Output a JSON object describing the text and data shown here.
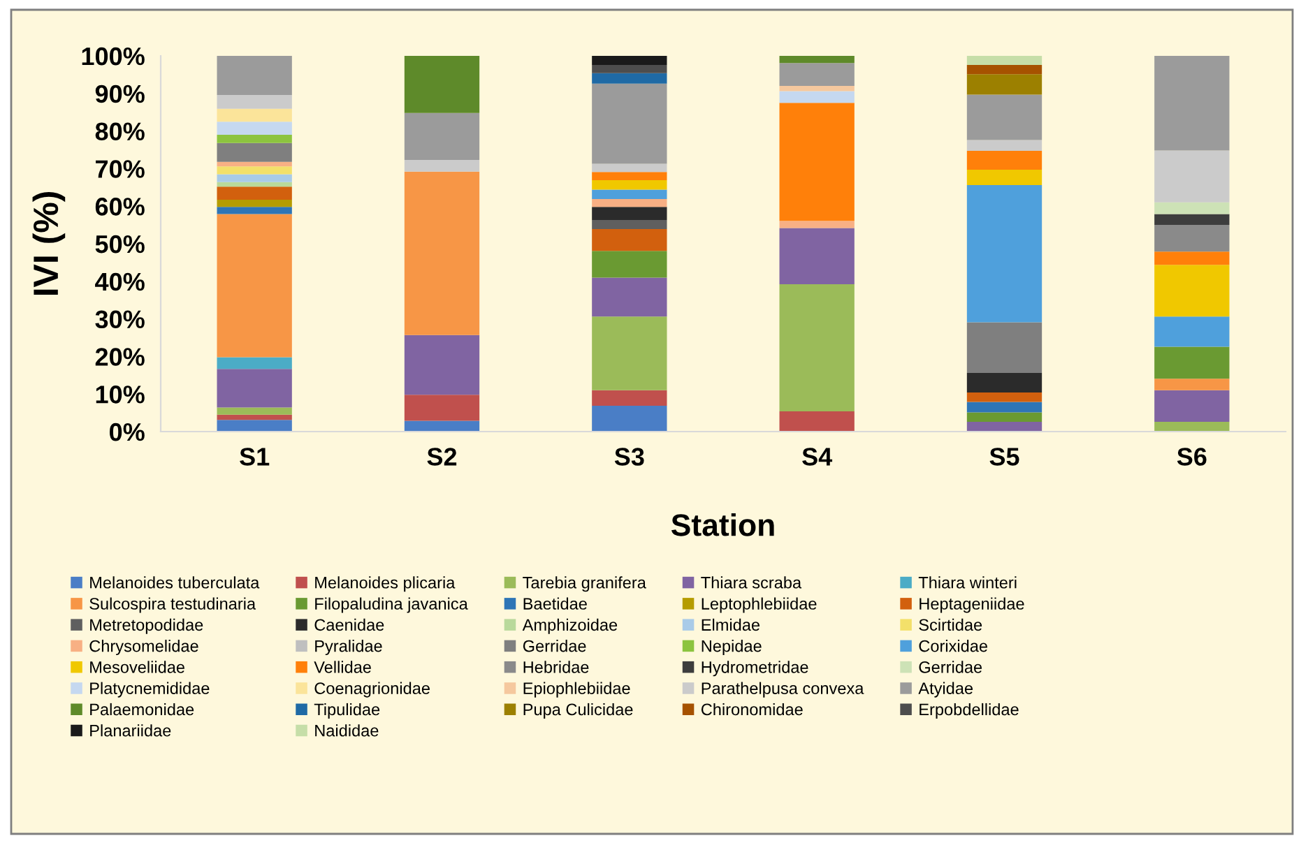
{
  "chart_data": {
    "type": "bar",
    "stacked": true,
    "xlabel": "Station",
    "ylabel": "IVI (%)",
    "categories": [
      "S1",
      "S2",
      "S3",
      "S4",
      "S5",
      "S6"
    ],
    "ylim": [
      0,
      100
    ],
    "yticks": [
      {
        "value": 0,
        "label": "0%"
      },
      {
        "value": 10,
        "label": "10%"
      },
      {
        "value": 20,
        "label": "20%"
      },
      {
        "value": 30,
        "label": "30%"
      },
      {
        "value": 40,
        "label": "40%"
      },
      {
        "value": 50,
        "label": "50%"
      },
      {
        "value": 60,
        "label": "60%"
      },
      {
        "value": 70,
        "label": "70%"
      },
      {
        "value": 80,
        "label": "80%"
      },
      {
        "value": 90,
        "label": "90%"
      },
      {
        "value": 100,
        "label": "100%"
      }
    ],
    "grid": false,
    "legend": "bottom",
    "series": [
      {
        "name": "Melanoides tuberculata",
        "color": "#4a7ec6",
        "values": [
          3.1,
          2.9,
          6.9,
          null,
          null,
          null
        ]
      },
      {
        "name": "Melanoides plicaria",
        "color": "#c0504d",
        "values": [
          1.4,
          6.9,
          4.1,
          5.4,
          null,
          null
        ]
      },
      {
        "name": "Tarebia granifera",
        "color": "#9bbb59",
        "values": [
          1.9,
          null,
          19.6,
          33.8,
          null,
          2.6
        ]
      },
      {
        "name": "Thiara scraba",
        "color": "#8064a2",
        "values": [
          10.3,
          15.9,
          10.4,
          15.0,
          2.6,
          8.4
        ]
      },
      {
        "name": "Thiara winteri",
        "color": "#4bacc6",
        "values": [
          3.1,
          null,
          null,
          null,
          null,
          null
        ]
      },
      {
        "name": "Sulcospira testudinaria",
        "color": "#f79646",
        "values": [
          38.1,
          43.5,
          null,
          null,
          null,
          3.1
        ]
      },
      {
        "name": "Filopaludina javanica",
        "color": "#6a9a32",
        "values": [
          null,
          null,
          7.1,
          null,
          2.5,
          8.5
        ]
      },
      {
        "name": "Baetidae",
        "color": "#2e75b6",
        "values": [
          1.9,
          null,
          null,
          null,
          2.8,
          null
        ]
      },
      {
        "name": "Leptophlebiidae",
        "color": "#b59c00",
        "values": [
          1.9,
          null,
          null,
          null,
          null,
          null
        ]
      },
      {
        "name": "Heptageniidae",
        "color": "#d2600e",
        "values": [
          3.5,
          null,
          5.8,
          null,
          2.5,
          null
        ]
      },
      {
        "name": "Metretopodidae",
        "color": "#5f5f5f",
        "values": [
          null,
          null,
          2.4,
          null,
          null,
          null
        ]
      },
      {
        "name": "Caenidae",
        "color": "#2b2b2b",
        "values": [
          null,
          null,
          3.5,
          null,
          5.2,
          null
        ]
      },
      {
        "name": "Amphizoidae",
        "color": "#b9d99b",
        "values": [
          1.2,
          null,
          null,
          null,
          null,
          null
        ]
      },
      {
        "name": "Elmidae",
        "color": "#a9cbe8",
        "values": [
          2.1,
          null,
          null,
          null,
          null,
          null
        ]
      },
      {
        "name": "Scirtidae",
        "color": "#f3e06a",
        "values": [
          2.1,
          null,
          null,
          null,
          null,
          null
        ]
      },
      {
        "name": "Chrysomelidae",
        "color": "#f8b084",
        "values": [
          1.2,
          null,
          2.1,
          1.9,
          null,
          null
        ]
      },
      {
        "name": "Pyralidae",
        "color": "#bfbfbf",
        "values": [
          null,
          null,
          null,
          null,
          null,
          null
        ]
      },
      {
        "name": "Gerridae",
        "color": "#7f7f7f",
        "values": [
          5.0,
          null,
          null,
          null,
          13.5,
          null
        ]
      },
      {
        "name": "Nepidae",
        "color": "#8cc43f",
        "values": [
          2.2,
          null,
          null,
          null,
          null,
          null
        ]
      },
      {
        "name": "Corixidae",
        "color": "#4fa0dc",
        "values": [
          null,
          null,
          2.5,
          null,
          36.5,
          8.0
        ]
      },
      {
        "name": "Mesoveliidae",
        "color": "#f0c800",
        "values": [
          null,
          null,
          2.5,
          null,
          4.1,
          13.8
        ]
      },
      {
        "name": "Vellidae",
        "color": "#ff800a",
        "values": [
          null,
          null,
          2.2,
          31.4,
          5.0,
          3.5
        ]
      },
      {
        "name": "Hebridae",
        "color": "#8a8a8a",
        "values": [
          null,
          null,
          null,
          null,
          null,
          7.1
        ]
      },
      {
        "name": "Hydrometridae",
        "color": "#3d3d3d",
        "values": [
          null,
          null,
          null,
          null,
          null,
          2.9
        ]
      },
      {
        "name": "Gerridae",
        "color": "#cde2b6",
        "values": [
          null,
          null,
          null,
          null,
          null,
          3.1
        ]
      },
      {
        "name": "Platycnemididae",
        "color": "#c5d8f0",
        "values": [
          3.5,
          null,
          null,
          3.1,
          null,
          null
        ]
      },
      {
        "name": "Coenagrionidae",
        "color": "#fbe49a",
        "values": [
          3.4,
          null,
          null,
          null,
          null,
          null
        ]
      },
      {
        "name": "Epiophlebiidae",
        "color": "#f5c89e",
        "values": [
          null,
          null,
          null,
          1.4,
          null,
          null
        ]
      },
      {
        "name": "Parathelpusa convexa",
        "color": "#cbcbcb",
        "values": [
          3.7,
          3.1,
          2.2,
          null,
          2.9,
          13.8
        ]
      },
      {
        "name": "Atyidae",
        "color": "#9b9b9b",
        "values": [
          10.4,
          12.5,
          21.3,
          6.1,
          12.1,
          25.2
        ]
      },
      {
        "name": "Palaemonidae",
        "color": "#5e8a2a",
        "values": [
          null,
          15.2,
          null,
          1.9,
          null,
          null
        ]
      },
      {
        "name": "Tipulidae",
        "color": "#1f6aa5",
        "values": [
          null,
          null,
          2.8,
          null,
          null,
          null
        ]
      },
      {
        "name": "Pupa Culicidae",
        "color": "#9c8000",
        "values": [
          null,
          null,
          null,
          null,
          5.4,
          null
        ]
      },
      {
        "name": "Chironomidae",
        "color": "#a65200",
        "values": [
          null,
          null,
          null,
          null,
          2.5,
          null
        ]
      },
      {
        "name": "Erpobdellidae",
        "color": "#4d4d4d",
        "values": [
          null,
          null,
          2.2,
          null,
          null,
          null
        ]
      },
      {
        "name": "Planariidae",
        "color": "#1a1a1a",
        "values": [
          null,
          null,
          2.4,
          null,
          null,
          null
        ]
      },
      {
        "name": "Naididae",
        "color": "#c6dea8",
        "values": [
          null,
          null,
          null,
          null,
          2.4,
          null
        ]
      }
    ]
  }
}
